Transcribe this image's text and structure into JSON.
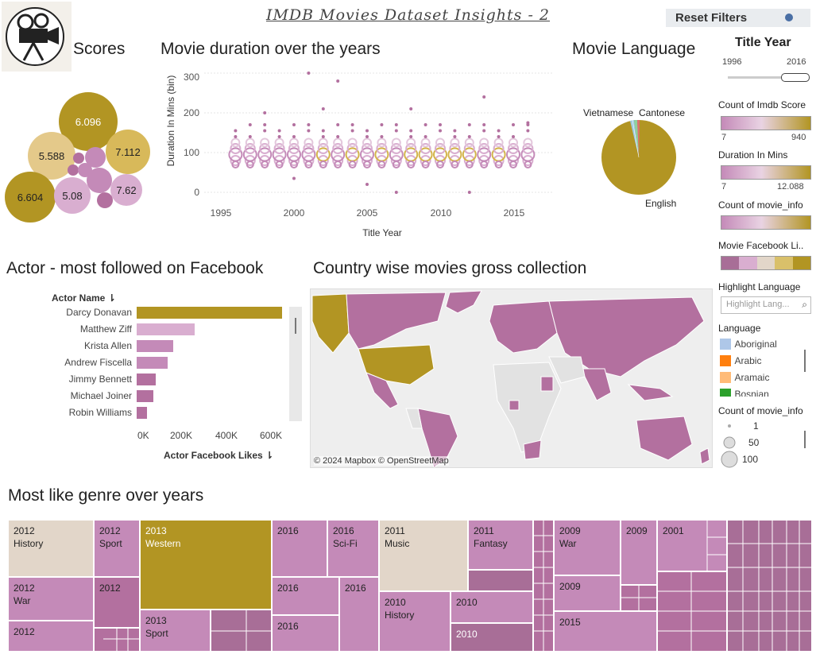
{
  "dashboard_title": "IMDB Movies Dataset Insights - 2",
  "reset_filters": "Reset Filters",
  "sections": {
    "scores": "Scores",
    "duration": "Movie duration over the years",
    "language": "Movie Language",
    "actor": "Actor - most followed on Facebook",
    "country": "Country wise movies gross collection",
    "genre": "Most like genre over years"
  },
  "colors": {
    "gold": "#b29523",
    "light_gold": "#d9c06a",
    "pink": "#c48ab8",
    "light_pink": "#d9aed0",
    "beige": "#e2d6c9",
    "mauve": "#a86e97"
  },
  "scores": {
    "labels": [
      "6.096",
      "5.588",
      "7.112",
      "6.604",
      "5.08",
      "7.62"
    ]
  },
  "duration_chart": {
    "type": "scatter",
    "ylabel": "Duration In Mins (bin)",
    "xlabel": "Title Year",
    "x_ticks": [
      "1995",
      "2000",
      "2005",
      "2010",
      "2015"
    ],
    "y_ticks": [
      "0",
      "100",
      "200",
      "300"
    ]
  },
  "language_chart": {
    "type": "pie",
    "labels": [
      "Vietnamese",
      "Cantonese",
      "English"
    ]
  },
  "actor_chart": {
    "type": "bar",
    "header": "Actor Name",
    "xlabel": "Actor Facebook Likes",
    "x_ticks": [
      "0K",
      "200K",
      "400K",
      "600K"
    ],
    "max": 700,
    "bars": [
      {
        "name": "Darcy Donavan",
        "value": 640,
        "color": "#b29523"
      },
      {
        "name": "Matthew Ziff",
        "value": 255,
        "color": "#d9aed0"
      },
      {
        "name": "Krista Allen",
        "value": 162,
        "color": "#c48ab8"
      },
      {
        "name": "Andrew Fiscella",
        "value": 137,
        "color": "#c48ab8"
      },
      {
        "name": "Jimmy Bennett",
        "value": 85,
        "color": "#b3709f"
      },
      {
        "name": "Michael Joiner",
        "value": 75,
        "color": "#b3709f"
      },
      {
        "name": "Robin Williams",
        "value": 45,
        "color": "#b3709f"
      }
    ]
  },
  "map": {
    "attribution": "© 2024 Mapbox © OpenStreetMap"
  },
  "filters": {
    "title_year": {
      "label": "Title Year",
      "min": "1996",
      "max": "2016"
    },
    "count_imdb": {
      "label": "Count of Imdb Score",
      "min": "7",
      "max": "940"
    },
    "duration": {
      "label": "Duration In Mins",
      "min": "7",
      "max": "12.088"
    },
    "count_movie_info": {
      "label": "Count of movie_info"
    },
    "fb_likes": {
      "label": "Movie Facebook Li.."
    },
    "highlight": {
      "label": "Highlight Language",
      "placeholder": "Highlight Lang..."
    },
    "language": {
      "label": "Language",
      "items": [
        {
          "name": "Aboriginal",
          "color": "#aec7e8"
        },
        {
          "name": "Arabic",
          "color": "#ff7f0e"
        },
        {
          "name": "Aramaic",
          "color": "#ffbb78"
        },
        {
          "name": "Bosnian",
          "color": "#2ca02c"
        }
      ]
    },
    "size_legend": {
      "label": "Count of movie_info",
      "items": [
        "1",
        "50",
        "100"
      ]
    }
  },
  "treemap": {
    "cells": [
      {
        "l1": "2012",
        "l2": "History"
      },
      {
        "l1": "2012",
        "l2": "Sport"
      },
      {
        "l1": "2012",
        "l2": "War"
      },
      {
        "l1": "2012",
        "l2": ""
      },
      {
        "l1": "2012",
        "l2": ""
      },
      {
        "l1": "2013",
        "l2": "Western"
      },
      {
        "l1": "2013",
        "l2": "Sport"
      },
      {
        "l1": "2016",
        "l2": ""
      },
      {
        "l1": "2016",
        "l2": "Sci-Fi"
      },
      {
        "l1": "2016",
        "l2": ""
      },
      {
        "l1": "2016",
        "l2": ""
      },
      {
        "l1": "2016",
        "l2": ""
      },
      {
        "l1": "2011",
        "l2": "Music"
      },
      {
        "l1": "2011",
        "l2": "Fantasy"
      },
      {
        "l1": "2010",
        "l2": "History"
      },
      {
        "l1": "2010",
        "l2": ""
      },
      {
        "l1": "2010",
        "l2": ""
      },
      {
        "l1": "2009",
        "l2": "War"
      },
      {
        "l1": "2009",
        "l2": ""
      },
      {
        "l1": "2009",
        "l2": ""
      },
      {
        "l1": "2015",
        "l2": ""
      },
      {
        "l1": "2001",
        "l2": ""
      }
    ]
  }
}
